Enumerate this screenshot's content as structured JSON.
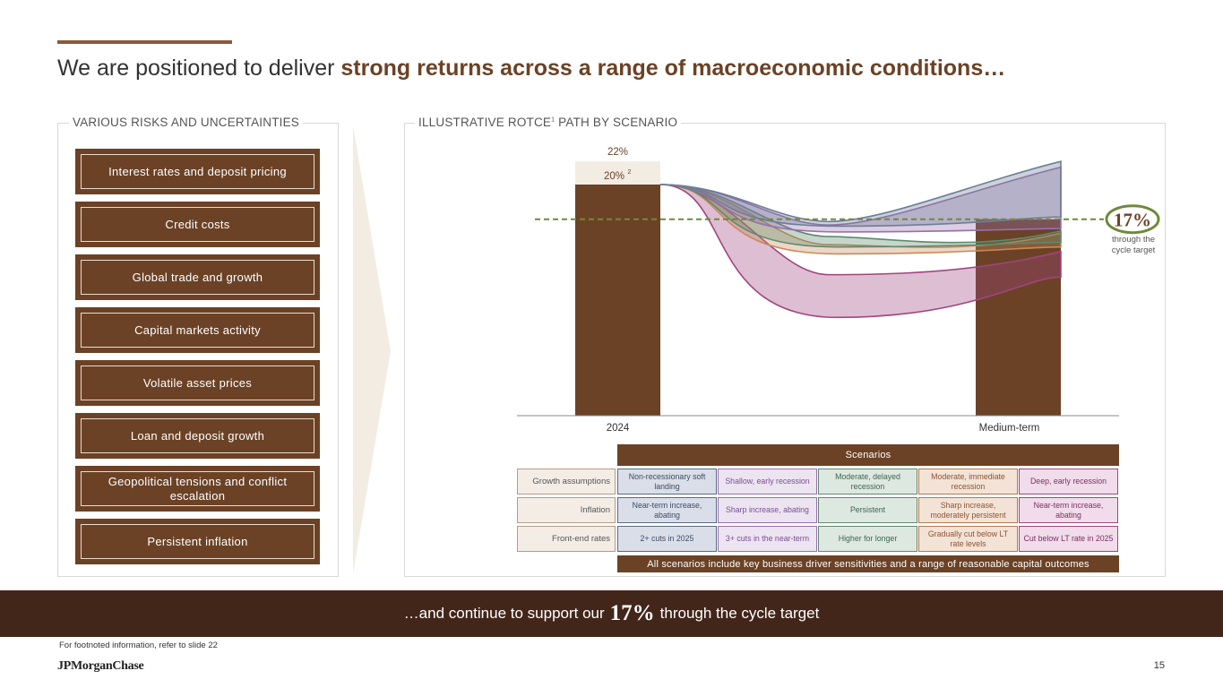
{
  "header": {
    "title_prefix": "We are positioned to deliver ",
    "title_emphasis": "strong returns across a range of macroeconomic conditions…"
  },
  "left_panel": {
    "label": "VARIOUS RISKS AND UNCERTAINTIES",
    "risks": [
      "Interest rates and deposit pricing",
      "Credit costs",
      "Global trade and growth",
      "Capital markets activity",
      "Volatile asset prices",
      "Loan and deposit growth",
      "Geopolitical tensions and conflict escalation",
      "Persistent inflation"
    ]
  },
  "right_panel": {
    "label": "ILLUSTRATIVE ROTCE",
    "label_sup": "1",
    "label_suffix": " PATH BY SCENARIO"
  },
  "chart_data": {
    "type": "bar",
    "categories": [
      "2024",
      "Medium-term"
    ],
    "bar_2024": {
      "value": 20,
      "label": "20%",
      "label_sup": "2",
      "upper_value": 22,
      "upper_label": "22%"
    },
    "target": {
      "value": 17,
      "label": "17%",
      "note": "through the cycle target"
    },
    "series": [
      {
        "name": "Non-recessionary soft landing",
        "color": "#6d7e96",
        "path_low": [
          20,
          16.4,
          17.2
        ],
        "path_high": [
          20,
          16.8,
          22.0
        ]
      },
      {
        "name": "Shallow, early recession",
        "color": "#9a6fb0",
        "path_low": [
          20,
          15.9,
          16.2
        ],
        "path_high": [
          20,
          16.5,
          21.5
        ]
      },
      {
        "name": "Moderate, delayed recession",
        "color": "#5e8a6e",
        "path_low": [
          20,
          14.6,
          15.0
        ],
        "path_high": [
          20,
          15.5,
          16.0
        ]
      },
      {
        "name": "Moderate, immediate recession",
        "color": "#c98a5a",
        "path_low": [
          20,
          14.0,
          14.6
        ],
        "path_high": [
          20,
          14.8,
          15.8
        ]
      },
      {
        "name": "Deep, early recession",
        "color": "#a0457f",
        "path_low": [
          20,
          8.5,
          12.0
        ],
        "path_high": [
          20,
          12.2,
          14.2
        ]
      }
    ]
  },
  "scenario_table": {
    "header": "Scenarios",
    "rows": [
      {
        "label": "Growth assumptions",
        "cells": [
          "Non-recessionary soft landing",
          "Shallow, early recession",
          "Moderate, delayed recession",
          "Moderate, immediate recession",
          "Deep, early recession"
        ]
      },
      {
        "label": "Inflation",
        "cells": [
          "Near-term increase, abating",
          "Sharp increase, abating",
          "Persistent",
          "Sharp increase, moderately persistent",
          "Near-term increase, abating"
        ]
      },
      {
        "label": "Front-end rates",
        "cells": [
          "2+ cuts in 2025",
          "3+ cuts in the near-term",
          "Higher for longer",
          "Gradually cut below LT rate levels",
          "Cut below LT rate in 2025"
        ]
      }
    ],
    "footer": "All scenarios include key business driver sensitivities and a range of reasonable capital outcomes",
    "column_styles": [
      {
        "bg": "#d9dee8",
        "border": "#5a6a85",
        "text": "#3d4c66"
      },
      {
        "bg": "#ece4f1",
        "border": "#9a6fb0",
        "text": "#7a4e93"
      },
      {
        "bg": "#dde8e1",
        "border": "#5e8a6e",
        "text": "#3e6550"
      },
      {
        "bg": "#f3e3d6",
        "border": "#b5784f",
        "text": "#8c5433"
      },
      {
        "bg": "#f0dcea",
        "border": "#a0457f",
        "text": "#7d2e62"
      }
    ]
  },
  "banner": {
    "prefix": "…and continue to support our",
    "value": "17%",
    "suffix": "through the cycle target"
  },
  "footer": {
    "footnote": "For footnoted information, refer to slide 22",
    "logo": "JPMorganChase",
    "page": "15"
  }
}
